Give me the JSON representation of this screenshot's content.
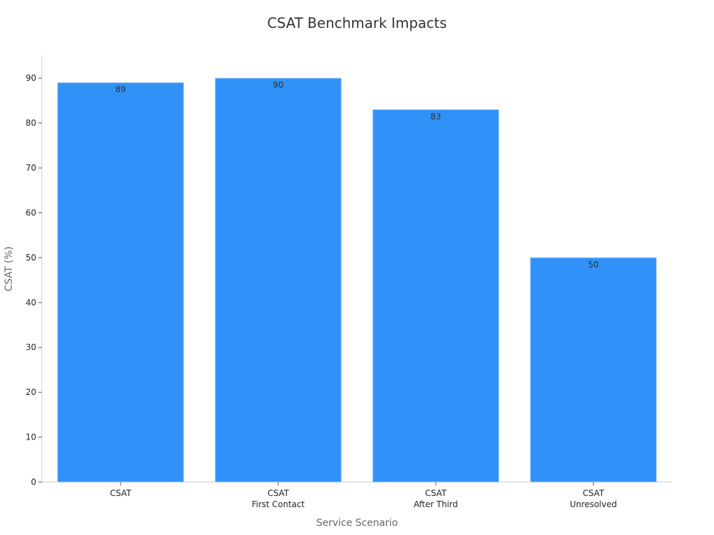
{
  "chart_data": {
    "type": "bar",
    "title": "CSAT Benchmark Impacts",
    "xlabel": "Service Scenario",
    "ylabel": "CSAT (%)",
    "categories": [
      [
        "CSAT"
      ],
      [
        "CSAT",
        "First Contact"
      ],
      [
        "CSAT",
        "After Third"
      ],
      [
        "CSAT",
        "Unresolved"
      ]
    ],
    "values": [
      89,
      90,
      83,
      50
    ],
    "data_labels": [
      "89",
      "90",
      "83",
      "50"
    ],
    "ylim": [
      0,
      95
    ],
    "yticks": [
      0,
      10,
      20,
      30,
      40,
      50,
      60,
      70,
      80,
      90
    ],
    "grid": false,
    "legend": "none",
    "colors": {
      "bar": "#3092f8",
      "bar_edge": "#a9cdf5"
    }
  }
}
